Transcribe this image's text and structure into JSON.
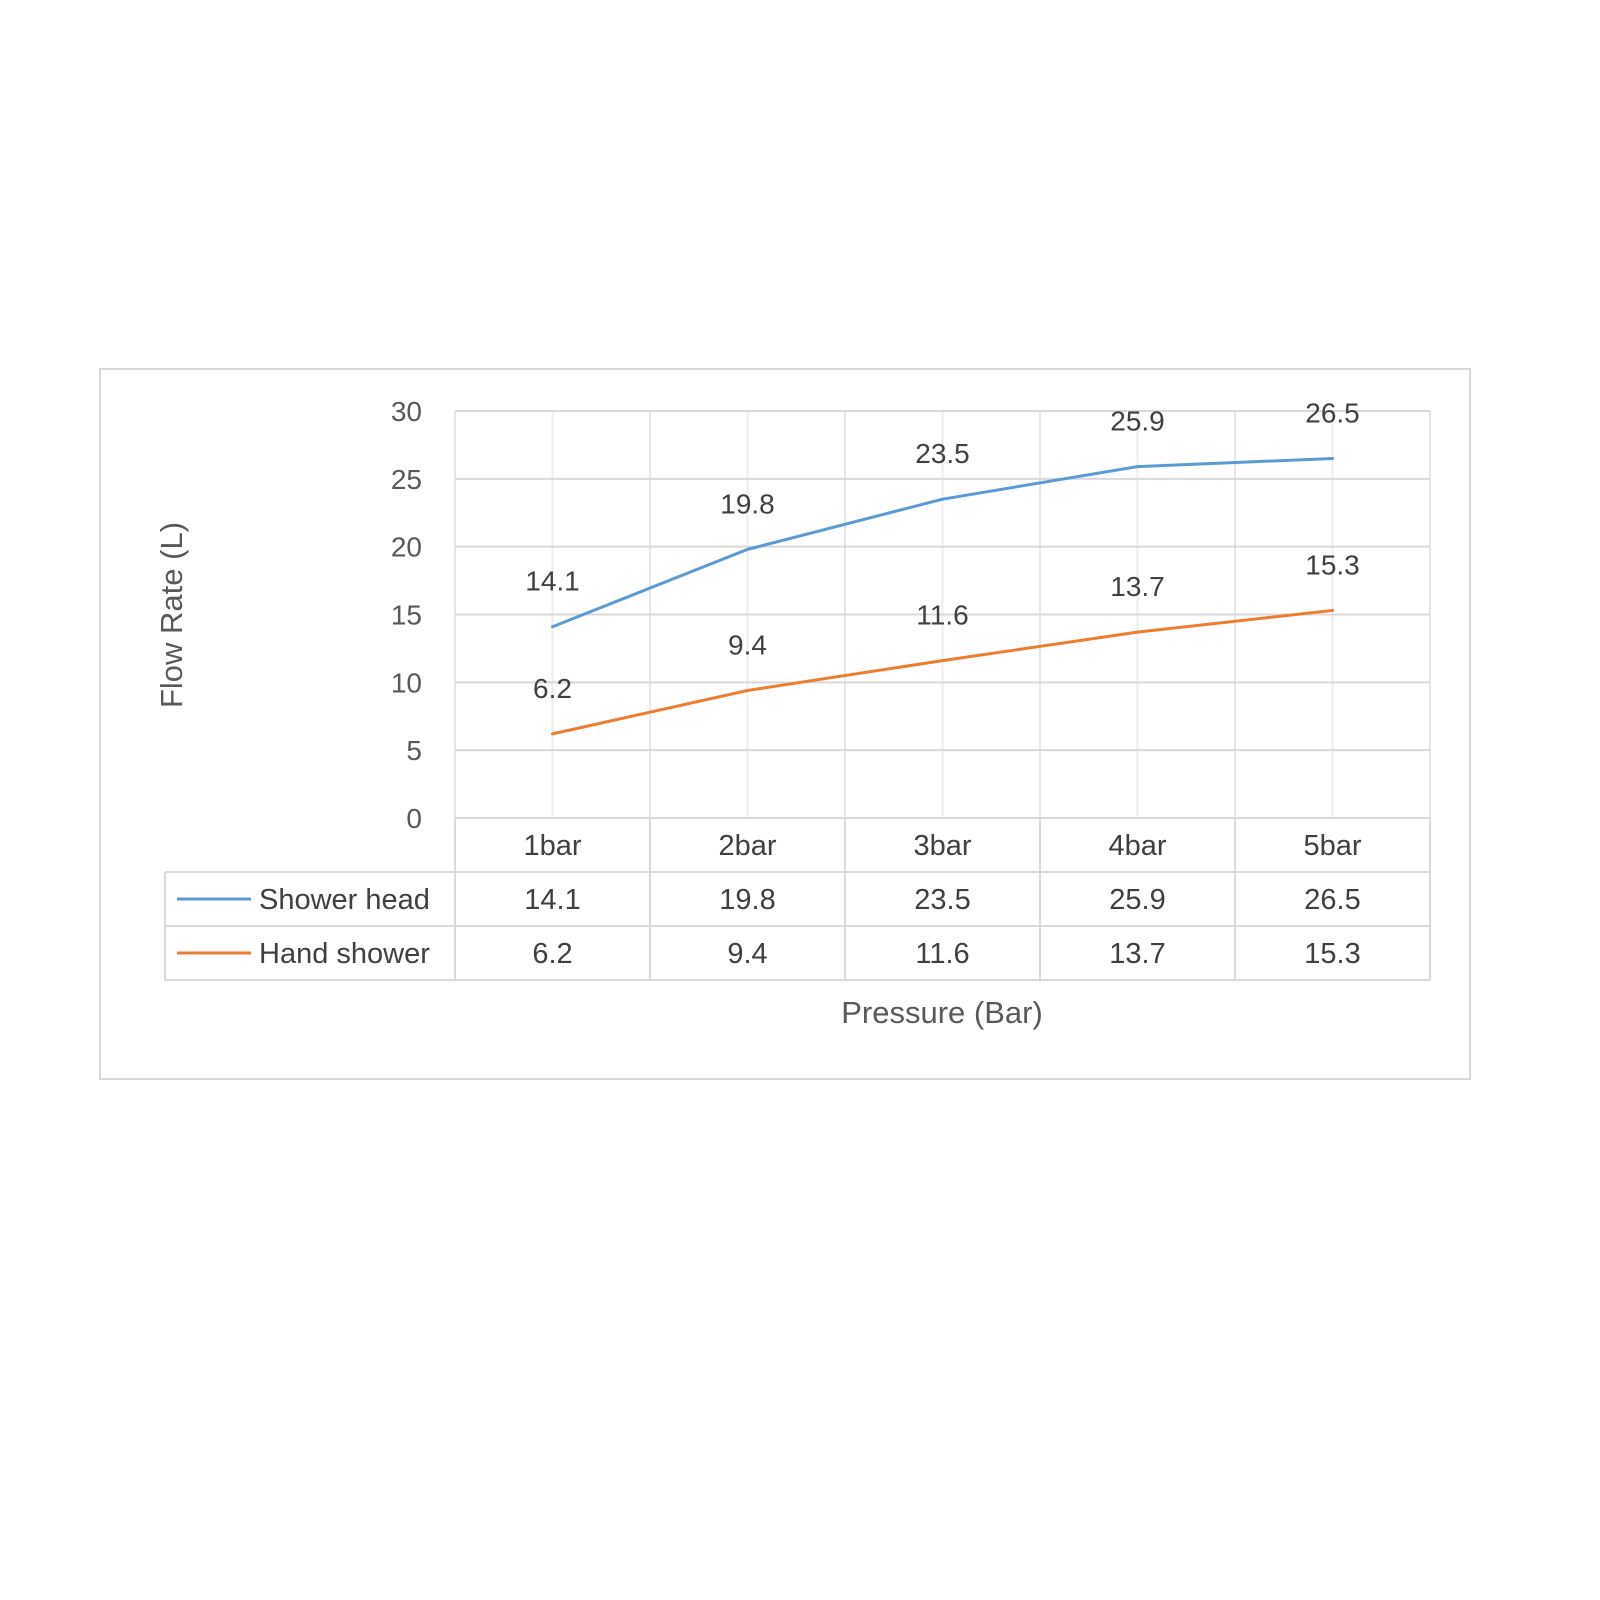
{
  "chart_data": {
    "type": "line",
    "xlabel": "Pressure (Bar)",
    "ylabel": "Flow Rate (L)",
    "categories": [
      "1bar",
      "2bar",
      "3bar",
      "4bar",
      "5bar"
    ],
    "ylim": [
      0,
      30
    ],
    "y_ticks": [
      0,
      5,
      10,
      15,
      20,
      25,
      30
    ],
    "grid": true,
    "legend": "data-table-below",
    "series": [
      {
        "name": "Shower head",
        "color": "#5b9bd5",
        "values": [
          14.1,
          19.8,
          23.5,
          25.9,
          26.5
        ]
      },
      {
        "name": "Hand shower",
        "color": "#ed7d31",
        "values": [
          6.2,
          9.4,
          11.6,
          13.7,
          15.3
        ]
      }
    ]
  }
}
